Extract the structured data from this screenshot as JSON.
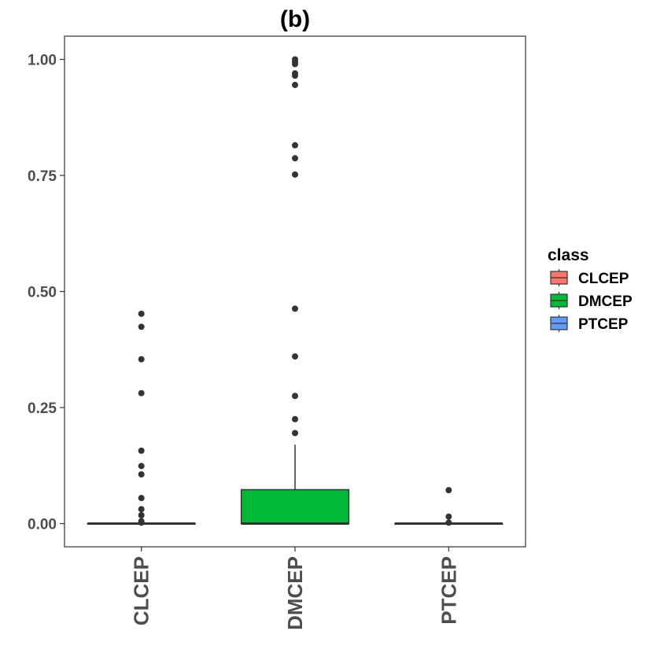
{
  "chart_data": {
    "type": "boxplot",
    "title": "(b)",
    "xlabel": "",
    "ylabel": "",
    "ylim": [
      -0.05,
      1.05
    ],
    "yticks": [
      0.0,
      0.25,
      0.5,
      0.75,
      1.0
    ],
    "ytick_labels": [
      "0.00",
      "0.25",
      "0.50",
      "0.75",
      "1.00"
    ],
    "grid": false,
    "legend": {
      "title": "class",
      "position": "right",
      "entries": [
        {
          "label": "CLCEP",
          "color": "#F8766D"
        },
        {
          "label": "DMCEP",
          "color": "#00BA38"
        },
        {
          "label": "PTCEP",
          "color": "#619CFF"
        }
      ]
    },
    "categories": [
      "CLCEP",
      "DMCEP",
      "PTCEP"
    ],
    "boxes": [
      {
        "category": "CLCEP",
        "color": "#F8766D",
        "min": 0.0,
        "q1": 0.0,
        "median": 0.0,
        "q3": 0.0,
        "max": 0.0,
        "outliers": [
          0.452,
          0.424,
          0.354,
          0.281,
          0.157,
          0.124,
          0.106,
          0.055,
          0.031,
          0.018,
          0.005,
          0.002
        ]
      },
      {
        "category": "DMCEP",
        "color": "#00BA38",
        "min": 0.0,
        "q1": 0.0,
        "median": 0.0,
        "q3": 0.073,
        "max": 0.17,
        "outliers": [
          1.0,
          0.995,
          0.99,
          0.97,
          0.965,
          0.945,
          0.815,
          0.787,
          0.752,
          0.463,
          0.36,
          0.275,
          0.225,
          0.195
        ]
      },
      {
        "category": "PTCEP",
        "color": "#619CFF",
        "min": 0.0,
        "q1": 0.0,
        "median": 0.0,
        "q3": 0.0,
        "max": 0.0,
        "outliers": [
          0.072,
          0.015,
          0.002
        ]
      }
    ]
  }
}
